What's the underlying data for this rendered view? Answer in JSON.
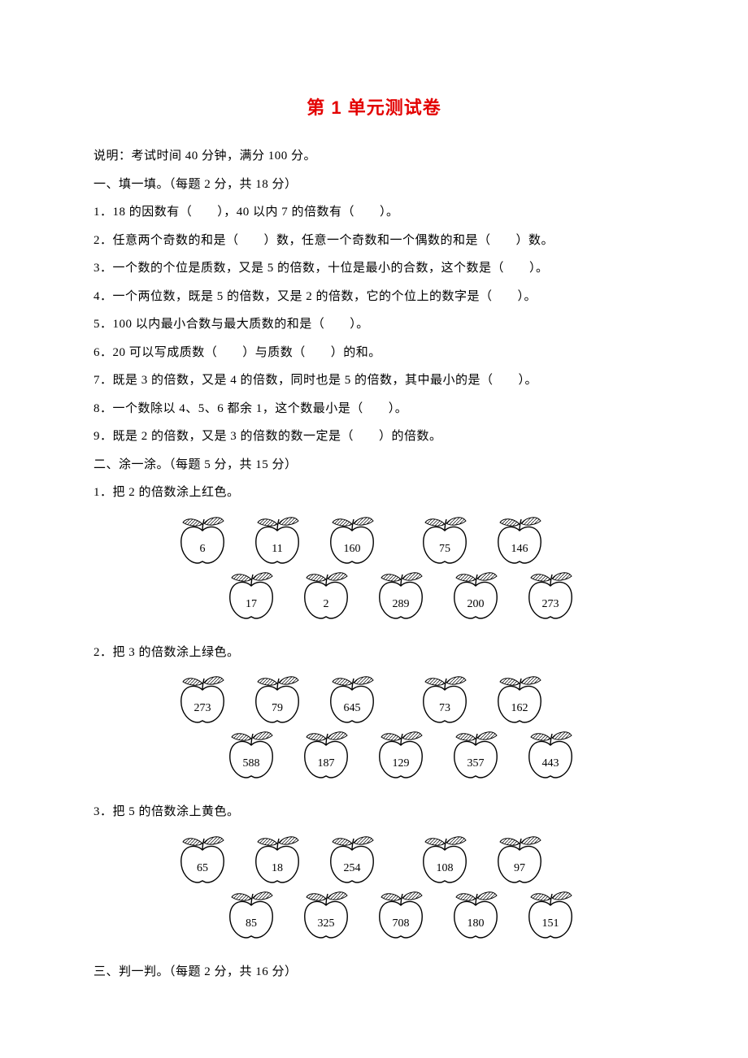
{
  "title": "第 1 单元测试卷",
  "note": "说明：考试时间 40 分钟，满分 100 分。",
  "sec1_header": "一、填一填。（每题 2 分，共 18 分）",
  "q1_1": "1．18 的因数有（　　），40 以内 7 的倍数有（　　）。",
  "q1_2": "2．任意两个奇数的和是（　　）数，任意一个奇数和一个偶数的和是（　　）数。",
  "q1_3": "3．一个数的个位是质数，又是 5 的倍数，十位是最小的合数，这个数是（　　）。",
  "q1_4": "4．一个两位数，既是 5 的倍数，又是 2 的倍数，它的个位上的数字是（　　）。",
  "q1_5": "5．100 以内最小合数与最大质数的和是（　　）。",
  "q1_6": "6．20 可以写成质数（　　）与质数（　　）的和。",
  "q1_7": "7．既是 3 的倍数，又是 4 的倍数，同时也是 5 的倍数，其中最小的是（　　）。",
  "q1_8": "8．一个数除以 4、5、6 都余 1，这个数最小是（　　）。",
  "q1_9": "9．既是 2 的倍数，又是 3 的倍数的数一定是（　　）的倍数。",
  "sec2_header": "二、涂一涂。（每题 5 分，共 15 分）",
  "q2_1": "1．把 2 的倍数涂上红色。",
  "q2_2": "2．把 3 的倍数涂上绿色。",
  "q2_3": "3．把 5 的倍数涂上黄色。",
  "sec3_header": "三、判一判。（每题 2 分，共 16 分）",
  "apples": {
    "g1_r1": [
      "6",
      "11",
      "160",
      "75",
      "146"
    ],
    "g1_r2": [
      "17",
      "2",
      "289",
      "200",
      "273"
    ],
    "g2_r1": [
      "273",
      "79",
      "645",
      "73",
      "162"
    ],
    "g2_r2": [
      "588",
      "187",
      "129",
      "357",
      "443"
    ],
    "g3_r1": [
      "65",
      "18",
      "254",
      "108",
      "97"
    ],
    "g3_r2": [
      "85",
      "325",
      "708",
      "180",
      "151"
    ]
  },
  "style": {
    "title_color": "#e30000",
    "text_color": "#000000",
    "bg_color": "#ffffff",
    "apple_stroke": "#000000",
    "apple_hatch": "#000000",
    "body_font": "SimSun",
    "title_font": "SimHei",
    "body_fontsize": 15,
    "title_fontsize": 22,
    "line_height": 2.3
  }
}
